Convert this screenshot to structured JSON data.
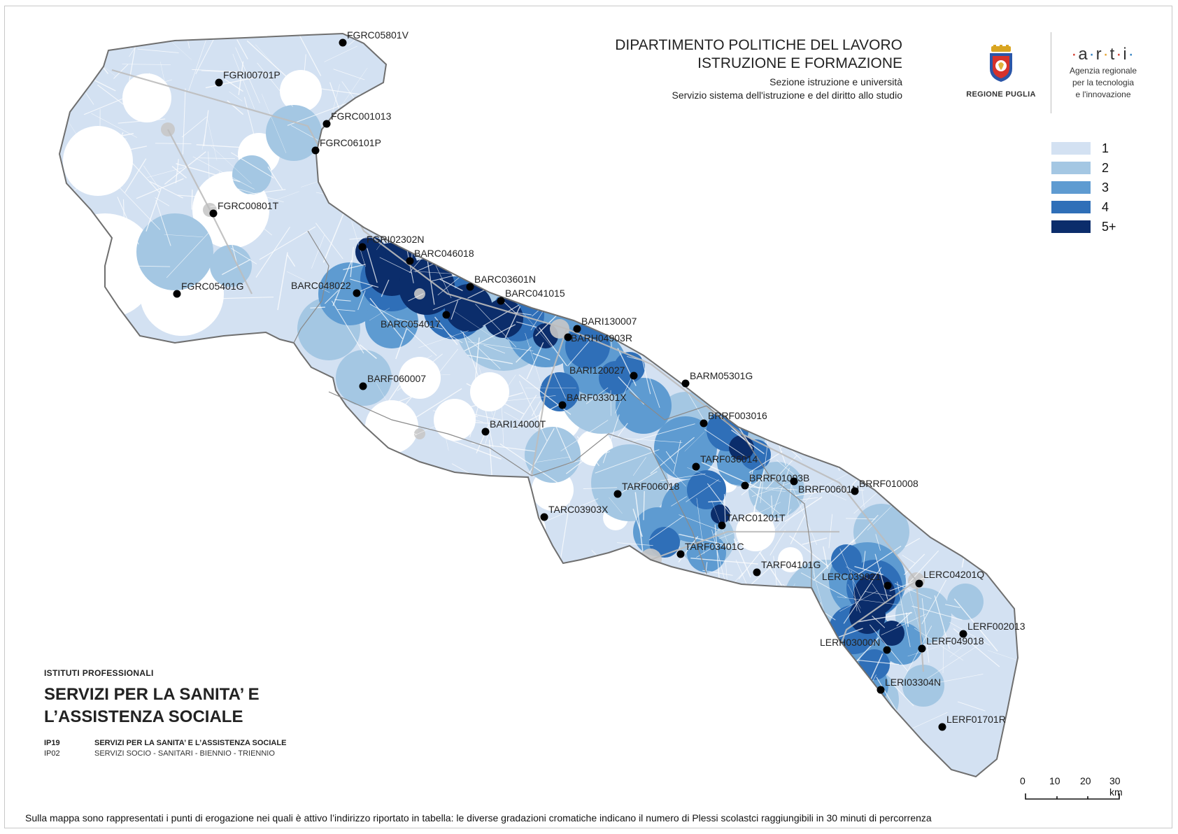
{
  "header": {
    "line1": "DIPARTIMENTO POLITICHE DEL LAVORO",
    "line2": "ISTRUZIONE E FORMAZIONE",
    "line3": "Sezione istruzione e università",
    "line4": "Servizio sistema dell'istruzione e del diritto allo studio"
  },
  "logos": {
    "regione": "REGIONE PUGLIA",
    "arti_word": [
      "a",
      "r",
      "t",
      "i"
    ],
    "arti_line1": "Agenzia regionale",
    "arti_line2": "per la tecnologia",
    "arti_line3": "e l'innovazione"
  },
  "legend": [
    {
      "label": "1",
      "color": "#d3e1f2"
    },
    {
      "label": "2",
      "color": "#a4c7e3"
    },
    {
      "label": "3",
      "color": "#5e9bd1"
    },
    {
      "label": "4",
      "color": "#2f6fb8"
    },
    {
      "label": "5+",
      "color": "#0b2d6b"
    }
  ],
  "colors": {
    "land_outside": "#ffffff",
    "boundary": "#6f6f6f",
    "roads": "#ffffff",
    "urban": "#c8c8c8",
    "point": "#000000"
  },
  "panel": {
    "category": "ISTITUTI PROFESSIONALI",
    "title_line1": "SERVIZI PER LA SANITA’ E",
    "title_line2": "L’ASSISTENZA SOCIALE",
    "code1": "IP19",
    "desc1": "SERVIZI PER LA SANITA’ E L’ASSISTENZA SOCIALE",
    "code2": "IP02",
    "desc2": "SERVIZI SOCIO - SANITARI - BIENNIO - TRIENNIO"
  },
  "scale_bar": {
    "labels": [
      "0",
      "10",
      "20",
      "30 km"
    ]
  },
  "footer": "Sulla mappa sono rappresentati i punti di erogazione nei quali è attivo l’indirizzo riportato in tabella: le diverse gradazioni cromatiche indicano il numero di Plessi scolastci raggiungibili in 30 minuti di percorrenza",
  "schools": [
    {
      "code": "FGRC05801V"
    },
    {
      "code": "FGRI00701P"
    },
    {
      "code": "FGRC001013"
    },
    {
      "code": "FGRC06101P"
    },
    {
      "code": "FGRC00801T"
    },
    {
      "code": "FGRC05401G"
    },
    {
      "code": "FGRI02302N"
    },
    {
      "code": "BARC046018"
    },
    {
      "code": "BARC048022"
    },
    {
      "code": "BARC03601N"
    },
    {
      "code": "BARC041015"
    },
    {
      "code": "BARC054017"
    },
    {
      "code": "BARI130007"
    },
    {
      "code": "BARH04903R"
    },
    {
      "code": "BARI120027"
    },
    {
      "code": "BARM05301G"
    },
    {
      "code": "BARF060007"
    },
    {
      "code": "BARF03301X"
    },
    {
      "code": "BARI14000T"
    },
    {
      "code": "BRRF003016"
    },
    {
      "code": "TARF036014"
    },
    {
      "code": "BRRF01003B"
    },
    {
      "code": "BRRF00601N"
    },
    {
      "code": "BRRF010008"
    },
    {
      "code": "TARF006018"
    },
    {
      "code": "TARC03903X"
    },
    {
      "code": "TARC01201T"
    },
    {
      "code": "TARF03401C"
    },
    {
      "code": "TARF04101G"
    },
    {
      "code": "LERC039021"
    },
    {
      "code": "LERC04201Q"
    },
    {
      "code": "LERF002013"
    },
    {
      "code": "LERH03000N"
    },
    {
      "code": "LERF049018"
    },
    {
      "code": "LERI03304N"
    },
    {
      "code": "LERF01701R"
    }
  ]
}
